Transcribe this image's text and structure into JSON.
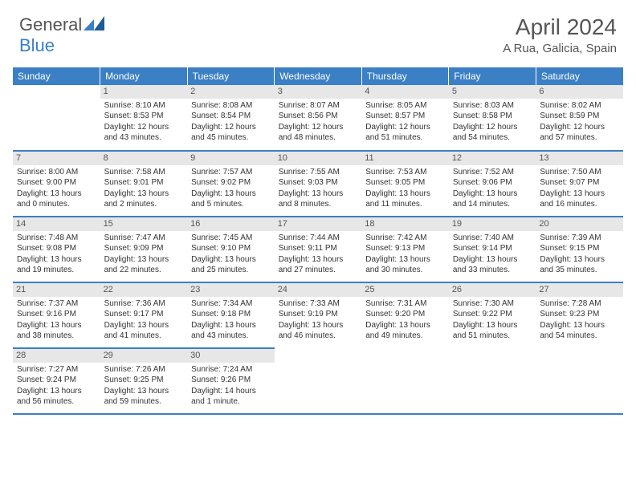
{
  "brand": {
    "text1": "General",
    "text2": "Blue",
    "color_gray": "#555555",
    "color_blue": "#3b7fc4"
  },
  "header": {
    "title": "April 2024",
    "location": "A Rua, Galicia, Spain"
  },
  "colors": {
    "header_bg": "#3b7fc4",
    "daynum_bg": "#e7e7e7",
    "border": "#3b7fc4",
    "text": "#333333",
    "background": "#ffffff"
  },
  "calendar": {
    "daysOfWeek": [
      "Sunday",
      "Monday",
      "Tuesday",
      "Wednesday",
      "Thursday",
      "Friday",
      "Saturday"
    ],
    "startWeekdayIndex": 1,
    "cells": [
      {
        "day": 1,
        "sunrise": "Sunrise: 8:10 AM",
        "sunset": "Sunset: 8:53 PM",
        "d1": "Daylight: 12 hours",
        "d2": "and 43 minutes."
      },
      {
        "day": 2,
        "sunrise": "Sunrise: 8:08 AM",
        "sunset": "Sunset: 8:54 PM",
        "d1": "Daylight: 12 hours",
        "d2": "and 45 minutes."
      },
      {
        "day": 3,
        "sunrise": "Sunrise: 8:07 AM",
        "sunset": "Sunset: 8:56 PM",
        "d1": "Daylight: 12 hours",
        "d2": "and 48 minutes."
      },
      {
        "day": 4,
        "sunrise": "Sunrise: 8:05 AM",
        "sunset": "Sunset: 8:57 PM",
        "d1": "Daylight: 12 hours",
        "d2": "and 51 minutes."
      },
      {
        "day": 5,
        "sunrise": "Sunrise: 8:03 AM",
        "sunset": "Sunset: 8:58 PM",
        "d1": "Daylight: 12 hours",
        "d2": "and 54 minutes."
      },
      {
        "day": 6,
        "sunrise": "Sunrise: 8:02 AM",
        "sunset": "Sunset: 8:59 PM",
        "d1": "Daylight: 12 hours",
        "d2": "and 57 minutes."
      },
      {
        "day": 7,
        "sunrise": "Sunrise: 8:00 AM",
        "sunset": "Sunset: 9:00 PM",
        "d1": "Daylight: 13 hours",
        "d2": "and 0 minutes."
      },
      {
        "day": 8,
        "sunrise": "Sunrise: 7:58 AM",
        "sunset": "Sunset: 9:01 PM",
        "d1": "Daylight: 13 hours",
        "d2": "and 2 minutes."
      },
      {
        "day": 9,
        "sunrise": "Sunrise: 7:57 AM",
        "sunset": "Sunset: 9:02 PM",
        "d1": "Daylight: 13 hours",
        "d2": "and 5 minutes."
      },
      {
        "day": 10,
        "sunrise": "Sunrise: 7:55 AM",
        "sunset": "Sunset: 9:03 PM",
        "d1": "Daylight: 13 hours",
        "d2": "and 8 minutes."
      },
      {
        "day": 11,
        "sunrise": "Sunrise: 7:53 AM",
        "sunset": "Sunset: 9:05 PM",
        "d1": "Daylight: 13 hours",
        "d2": "and 11 minutes."
      },
      {
        "day": 12,
        "sunrise": "Sunrise: 7:52 AM",
        "sunset": "Sunset: 9:06 PM",
        "d1": "Daylight: 13 hours",
        "d2": "and 14 minutes."
      },
      {
        "day": 13,
        "sunrise": "Sunrise: 7:50 AM",
        "sunset": "Sunset: 9:07 PM",
        "d1": "Daylight: 13 hours",
        "d2": "and 16 minutes."
      },
      {
        "day": 14,
        "sunrise": "Sunrise: 7:48 AM",
        "sunset": "Sunset: 9:08 PM",
        "d1": "Daylight: 13 hours",
        "d2": "and 19 minutes."
      },
      {
        "day": 15,
        "sunrise": "Sunrise: 7:47 AM",
        "sunset": "Sunset: 9:09 PM",
        "d1": "Daylight: 13 hours",
        "d2": "and 22 minutes."
      },
      {
        "day": 16,
        "sunrise": "Sunrise: 7:45 AM",
        "sunset": "Sunset: 9:10 PM",
        "d1": "Daylight: 13 hours",
        "d2": "and 25 minutes."
      },
      {
        "day": 17,
        "sunrise": "Sunrise: 7:44 AM",
        "sunset": "Sunset: 9:11 PM",
        "d1": "Daylight: 13 hours",
        "d2": "and 27 minutes."
      },
      {
        "day": 18,
        "sunrise": "Sunrise: 7:42 AM",
        "sunset": "Sunset: 9:13 PM",
        "d1": "Daylight: 13 hours",
        "d2": "and 30 minutes."
      },
      {
        "day": 19,
        "sunrise": "Sunrise: 7:40 AM",
        "sunset": "Sunset: 9:14 PM",
        "d1": "Daylight: 13 hours",
        "d2": "and 33 minutes."
      },
      {
        "day": 20,
        "sunrise": "Sunrise: 7:39 AM",
        "sunset": "Sunset: 9:15 PM",
        "d1": "Daylight: 13 hours",
        "d2": "and 35 minutes."
      },
      {
        "day": 21,
        "sunrise": "Sunrise: 7:37 AM",
        "sunset": "Sunset: 9:16 PM",
        "d1": "Daylight: 13 hours",
        "d2": "and 38 minutes."
      },
      {
        "day": 22,
        "sunrise": "Sunrise: 7:36 AM",
        "sunset": "Sunset: 9:17 PM",
        "d1": "Daylight: 13 hours",
        "d2": "and 41 minutes."
      },
      {
        "day": 23,
        "sunrise": "Sunrise: 7:34 AM",
        "sunset": "Sunset: 9:18 PM",
        "d1": "Daylight: 13 hours",
        "d2": "and 43 minutes."
      },
      {
        "day": 24,
        "sunrise": "Sunrise: 7:33 AM",
        "sunset": "Sunset: 9:19 PM",
        "d1": "Daylight: 13 hours",
        "d2": "and 46 minutes."
      },
      {
        "day": 25,
        "sunrise": "Sunrise: 7:31 AM",
        "sunset": "Sunset: 9:20 PM",
        "d1": "Daylight: 13 hours",
        "d2": "and 49 minutes."
      },
      {
        "day": 26,
        "sunrise": "Sunrise: 7:30 AM",
        "sunset": "Sunset: 9:22 PM",
        "d1": "Daylight: 13 hours",
        "d2": "and 51 minutes."
      },
      {
        "day": 27,
        "sunrise": "Sunrise: 7:28 AM",
        "sunset": "Sunset: 9:23 PM",
        "d1": "Daylight: 13 hours",
        "d2": "and 54 minutes."
      },
      {
        "day": 28,
        "sunrise": "Sunrise: 7:27 AM",
        "sunset": "Sunset: 9:24 PM",
        "d1": "Daylight: 13 hours",
        "d2": "and 56 minutes."
      },
      {
        "day": 29,
        "sunrise": "Sunrise: 7:26 AM",
        "sunset": "Sunset: 9:25 PM",
        "d1": "Daylight: 13 hours",
        "d2": "and 59 minutes."
      },
      {
        "day": 30,
        "sunrise": "Sunrise: 7:24 AM",
        "sunset": "Sunset: 9:26 PM",
        "d1": "Daylight: 14 hours",
        "d2": "and 1 minute."
      }
    ]
  }
}
